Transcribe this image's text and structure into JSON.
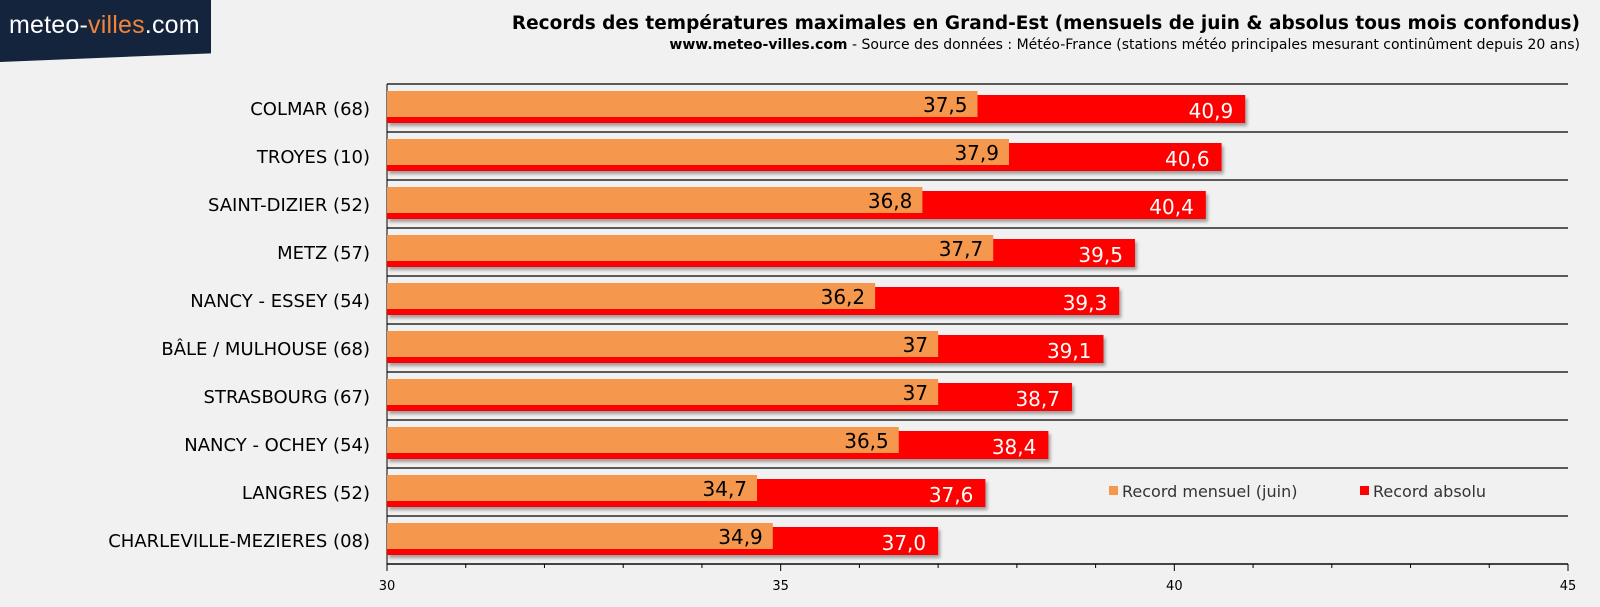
{
  "logo": {
    "text_main": "meteo-",
    "text_accent": "villes",
    "text_tail": ".com"
  },
  "header": {
    "title": "Records des températures maximales en Grand-Est (mensuels de juin & absolus tous mois confondus)",
    "subtitle_site": "www.meteo-villes.com",
    "subtitle_rest": " - Source des données : Météo-France (stations météo principales mesurant continûment depuis 20 ans)"
  },
  "colors": {
    "monthly": "#f5974c",
    "absolute": "#ff0000",
    "background": "#f1f1f1"
  },
  "chart_data": {
    "type": "bar",
    "orientation": "horizontal",
    "title": "Records des températures maximales en Grand-Est (mensuels de juin & absolus tous mois confondus)",
    "categories": [
      "COLMAR (68)",
      "TROYES (10)",
      "SAINT-DIZIER (52)",
      "METZ (57)",
      "NANCY - ESSEY (54)",
      "BÂLE / MULHOUSE (68)",
      "STRASBOURG (67)",
      "NANCY - OCHEY (54)",
      "LANGRES (52)",
      "CHARLEVILLE-MEZIERES (08)"
    ],
    "series": [
      {
        "name": "Record mensuel (juin)",
        "values": [
          37.5,
          37.9,
          36.8,
          37.7,
          36.2,
          37,
          37,
          36.5,
          34.7,
          34.9
        ],
        "labels": [
          "37,5",
          "37,9",
          "36,8",
          "37,7",
          "36,2",
          "37",
          "37",
          "36,5",
          "34,7",
          "34,9"
        ]
      },
      {
        "name": "Record absolu",
        "values": [
          40.9,
          40.6,
          40.4,
          39.5,
          39.3,
          39.1,
          38.7,
          38.4,
          37.6,
          37.0
        ],
        "labels": [
          "40,9",
          "40,6",
          "40,4",
          "39,5",
          "39,3",
          "39,1",
          "38,7",
          "38,4",
          "37,6",
          "37,0"
        ]
      }
    ],
    "xlim": [
      30,
      45
    ],
    "xticks": [
      30,
      35,
      40,
      45
    ],
    "xtick_labels": [
      "30",
      "35",
      "40",
      "45"
    ],
    "legend": "bottom-right",
    "grid": "horizontal separators"
  }
}
